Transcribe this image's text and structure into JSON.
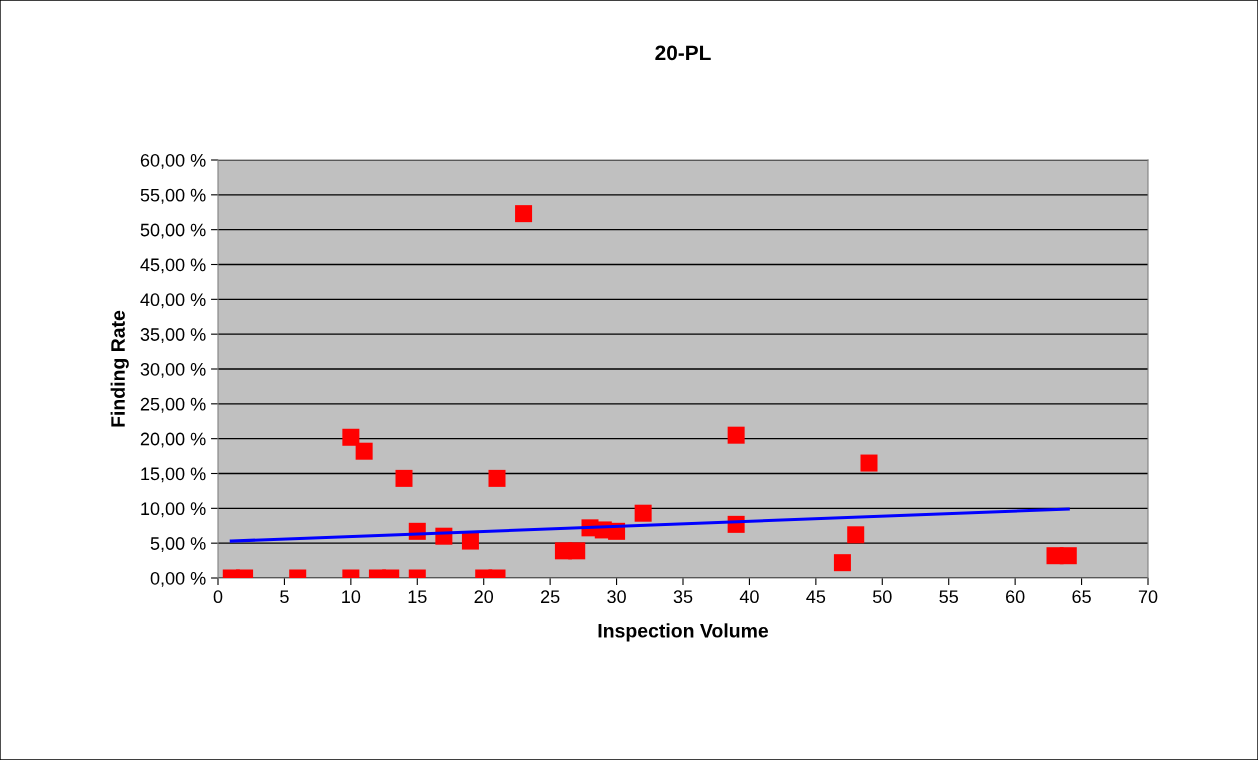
{
  "chart_data": {
    "type": "scatter",
    "title": "20-PL",
    "xlabel": "Inspection Volume",
    "ylabel": "Finding Rate",
    "series": [
      {
        "color": "#ff0000",
        "marker": "square",
        "x": [
          1,
          2,
          6,
          10,
          10,
          11,
          12,
          13,
          14,
          15,
          15,
          17,
          19,
          20,
          21,
          21,
          23,
          26,
          27,
          28,
          29,
          30,
          32,
          39,
          39,
          47,
          48,
          49,
          63,
          64
        ],
        "values": [
          0,
          0,
          0,
          0,
          20.2,
          18.2,
          0,
          0,
          14.3,
          0,
          6.7,
          6.0,
          5.3,
          0,
          0,
          14.3,
          52.3,
          3.9,
          3.9,
          7.2,
          6.9,
          6.7,
          9.3,
          20.5,
          7.7,
          2.2,
          6.2,
          16.5,
          3.2,
          3.2
        ]
      },
      {
        "type": "line",
        "color": "#0000ff",
        "marker": "none",
        "x": [
          1,
          64
        ],
        "values": [
          5.3,
          9.9
        ]
      }
    ],
    "xlim": [
      0,
      70
    ],
    "xticks": [
      0,
      5,
      10,
      15,
      20,
      25,
      30,
      35,
      40,
      45,
      50,
      55,
      60,
      65,
      70
    ],
    "ylim": [
      0,
      60
    ],
    "yticks": [
      {
        "value": 0,
        "label": "0,00 %"
      },
      {
        "value": 5,
        "label": "5,00 %"
      },
      {
        "value": 10,
        "label": "10,00 %"
      },
      {
        "value": 15,
        "label": "15,00 %"
      },
      {
        "value": 20,
        "label": "20,00 %"
      },
      {
        "value": 25,
        "label": "25,00 %"
      },
      {
        "value": 30,
        "label": "30,00 %"
      },
      {
        "value": 35,
        "label": "35,00 %"
      },
      {
        "value": 40,
        "label": "40,00 %"
      },
      {
        "value": 45,
        "label": "45,00 %"
      },
      {
        "value": 50,
        "label": "50,00 %"
      },
      {
        "value": 55,
        "label": "55,00 %"
      },
      {
        "value": 60,
        "label": "60,00 %"
      }
    ],
    "grid": "y",
    "legend": false
  }
}
